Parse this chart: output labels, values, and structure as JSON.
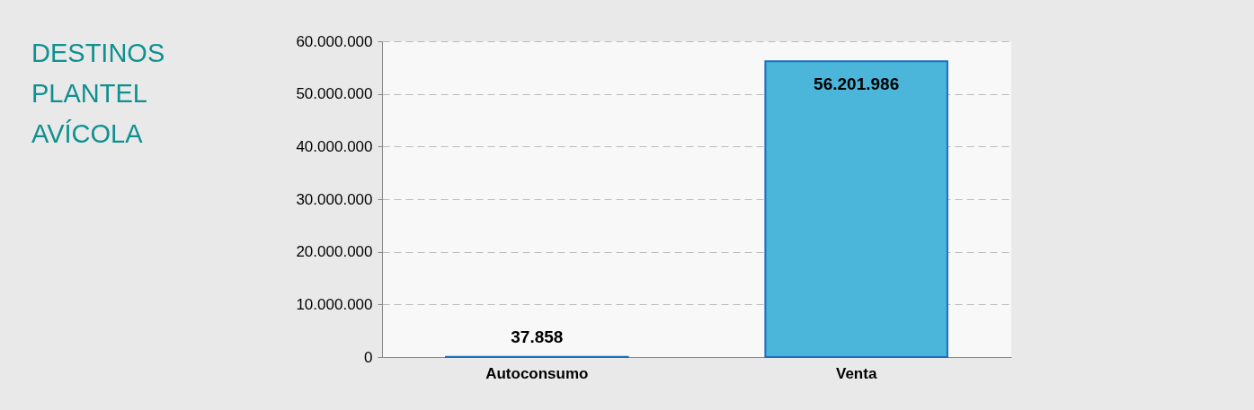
{
  "chart_data": {
    "type": "bar",
    "title": "DESTINOS PLANTEL AVÍCOLA",
    "categories": [
      "Autoconsumo",
      "Venta"
    ],
    "values": [
      37858,
      56201986
    ],
    "value_labels": [
      "37.858",
      "56.201.986"
    ],
    "color": "#4bb5da",
    "ylim": [
      0,
      60000000
    ],
    "yticks": [
      {
        "value": 0,
        "label": "0"
      },
      {
        "value": 10000000,
        "label": "10.000.000"
      },
      {
        "value": 20000000,
        "label": "20.000.000"
      },
      {
        "value": 30000000,
        "label": "30.000.000"
      },
      {
        "value": 40000000,
        "label": "40.000.000"
      },
      {
        "value": 50000000,
        "label": "50.000.000"
      },
      {
        "value": 60000000,
        "label": "60.000.000"
      }
    ],
    "grid": "y"
  }
}
